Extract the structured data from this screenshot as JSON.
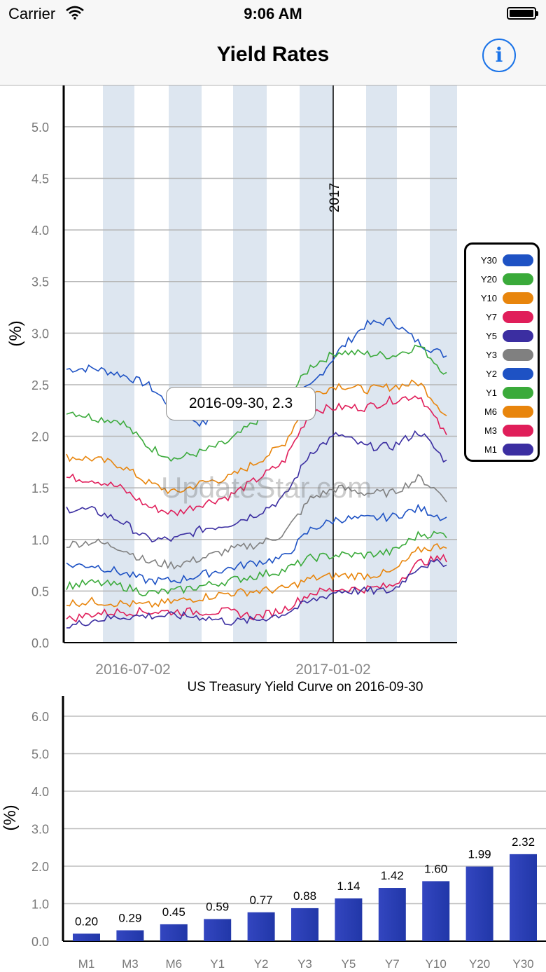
{
  "status_bar": {
    "carrier": "Carrier",
    "time": "9:06 AM"
  },
  "nav": {
    "title": "Yield Rates",
    "info_icon": "info-icon",
    "info_label": "i"
  },
  "watermark": "UpdateStar.com",
  "tooltip": "2016-09-30, 2.3",
  "legend": [
    {
      "label": "Y30",
      "color": "#1e52c4"
    },
    {
      "label": "Y20",
      "color": "#3aaa3a"
    },
    {
      "label": "Y10",
      "color": "#e8850c"
    },
    {
      "label": "Y7",
      "color": "#e01e5a"
    },
    {
      "label": "Y5",
      "color": "#3b2ea1"
    },
    {
      "label": "Y3",
      "color": "#808080"
    },
    {
      "label": "Y2",
      "color": "#1e52c4"
    },
    {
      "label": "Y1",
      "color": "#3aaa3a"
    },
    {
      "label": "M6",
      "color": "#e8850c"
    },
    {
      "label": "M3",
      "color": "#e01e5a"
    },
    {
      "label": "M1",
      "color": "#3b2ea1"
    }
  ],
  "chart_data": [
    {
      "type": "line",
      "ylabel": "(%)",
      "ylim": [
        0,
        5.4
      ],
      "yticks": [
        "0.0",
        "0.5",
        "1.0",
        "1.5",
        "2.0",
        "2.5",
        "3.0",
        "3.5",
        "4.0",
        "4.5",
        "5.0"
      ],
      "xtick_labels": [
        "2016-07-02",
        "2017-01-02"
      ],
      "marker_label": "2017",
      "series": [
        {
          "name": "Y30",
          "values": [
            2.65,
            2.66,
            2.6,
            2.5,
            2.25,
            2.12,
            2.25,
            2.28,
            2.32,
            2.48,
            2.82,
            3.08,
            3.12,
            2.9,
            2.78
          ]
        },
        {
          "name": "Y20",
          "values": [
            2.25,
            2.18,
            2.15,
            1.9,
            1.78,
            1.85,
            1.95,
            2.15,
            2.32,
            2.68,
            2.82,
            2.8,
            2.78,
            2.88,
            2.6
          ]
        },
        {
          "name": "Y10",
          "values": [
            1.8,
            1.78,
            1.72,
            1.55,
            1.45,
            1.55,
            1.6,
            1.75,
            1.92,
            2.4,
            2.5,
            2.45,
            2.48,
            2.52,
            2.2
          ]
        },
        {
          "name": "Y7",
          "values": [
            1.6,
            1.58,
            1.5,
            1.32,
            1.25,
            1.35,
            1.42,
            1.58,
            1.75,
            2.25,
            2.28,
            2.28,
            2.35,
            2.4,
            2.0
          ]
        },
        {
          "name": "Y5",
          "values": [
            1.3,
            1.28,
            1.18,
            1.0,
            1.0,
            1.1,
            1.15,
            1.25,
            1.4,
            1.85,
            2.02,
            1.9,
            1.9,
            2.05,
            1.75
          ]
        },
        {
          "name": "Y3",
          "values": [
            0.95,
            0.98,
            0.92,
            0.78,
            0.75,
            0.82,
            0.9,
            0.95,
            1.05,
            1.4,
            1.5,
            1.45,
            1.45,
            1.6,
            1.4
          ]
        },
        {
          "name": "Y2",
          "values": [
            0.75,
            0.75,
            0.68,
            0.6,
            0.6,
            0.66,
            0.72,
            0.78,
            0.82,
            1.1,
            1.2,
            1.2,
            1.22,
            1.3,
            1.2
          ]
        },
        {
          "name": "Y1",
          "values": [
            0.55,
            0.58,
            0.55,
            0.48,
            0.5,
            0.55,
            0.6,
            0.65,
            0.7,
            0.82,
            0.85,
            0.85,
            0.88,
            1.05,
            1.05
          ]
        },
        {
          "name": "M6",
          "values": [
            0.38,
            0.4,
            0.38,
            0.36,
            0.4,
            0.44,
            0.48,
            0.5,
            0.52,
            0.62,
            0.65,
            0.65,
            0.68,
            0.9,
            0.95
          ]
        },
        {
          "name": "M3",
          "values": [
            0.22,
            0.28,
            0.3,
            0.3,
            0.3,
            0.3,
            0.3,
            0.25,
            0.32,
            0.48,
            0.52,
            0.52,
            0.55,
            0.78,
            0.82
          ]
        },
        {
          "name": "M1",
          "values": [
            0.15,
            0.22,
            0.25,
            0.26,
            0.26,
            0.25,
            0.2,
            0.22,
            0.28,
            0.4,
            0.5,
            0.5,
            0.5,
            0.75,
            0.78
          ]
        }
      ]
    },
    {
      "type": "bar",
      "title": "US Treasury Yield Curve on 2016-09-30",
      "ylabel": "(%)",
      "ylim": [
        0,
        6.5
      ],
      "yticks": [
        "0.0",
        "1.0",
        "2.0",
        "3.0",
        "4.0",
        "5.0",
        "6.0"
      ],
      "categories": [
        "M1",
        "M3",
        "M6",
        "Y1",
        "Y2",
        "Y3",
        "Y5",
        "Y7",
        "Y10",
        "Y20",
        "Y30"
      ],
      "values": [
        0.2,
        0.29,
        0.45,
        0.59,
        0.77,
        0.88,
        1.14,
        1.42,
        1.6,
        1.99,
        2.32
      ],
      "value_labels": [
        "0.20",
        "0.29",
        "0.45",
        "0.59",
        "0.77",
        "0.88",
        "1.14",
        "1.42",
        "1.60",
        "1.99",
        "2.32"
      ],
      "bar_color": "#2137a8"
    }
  ]
}
